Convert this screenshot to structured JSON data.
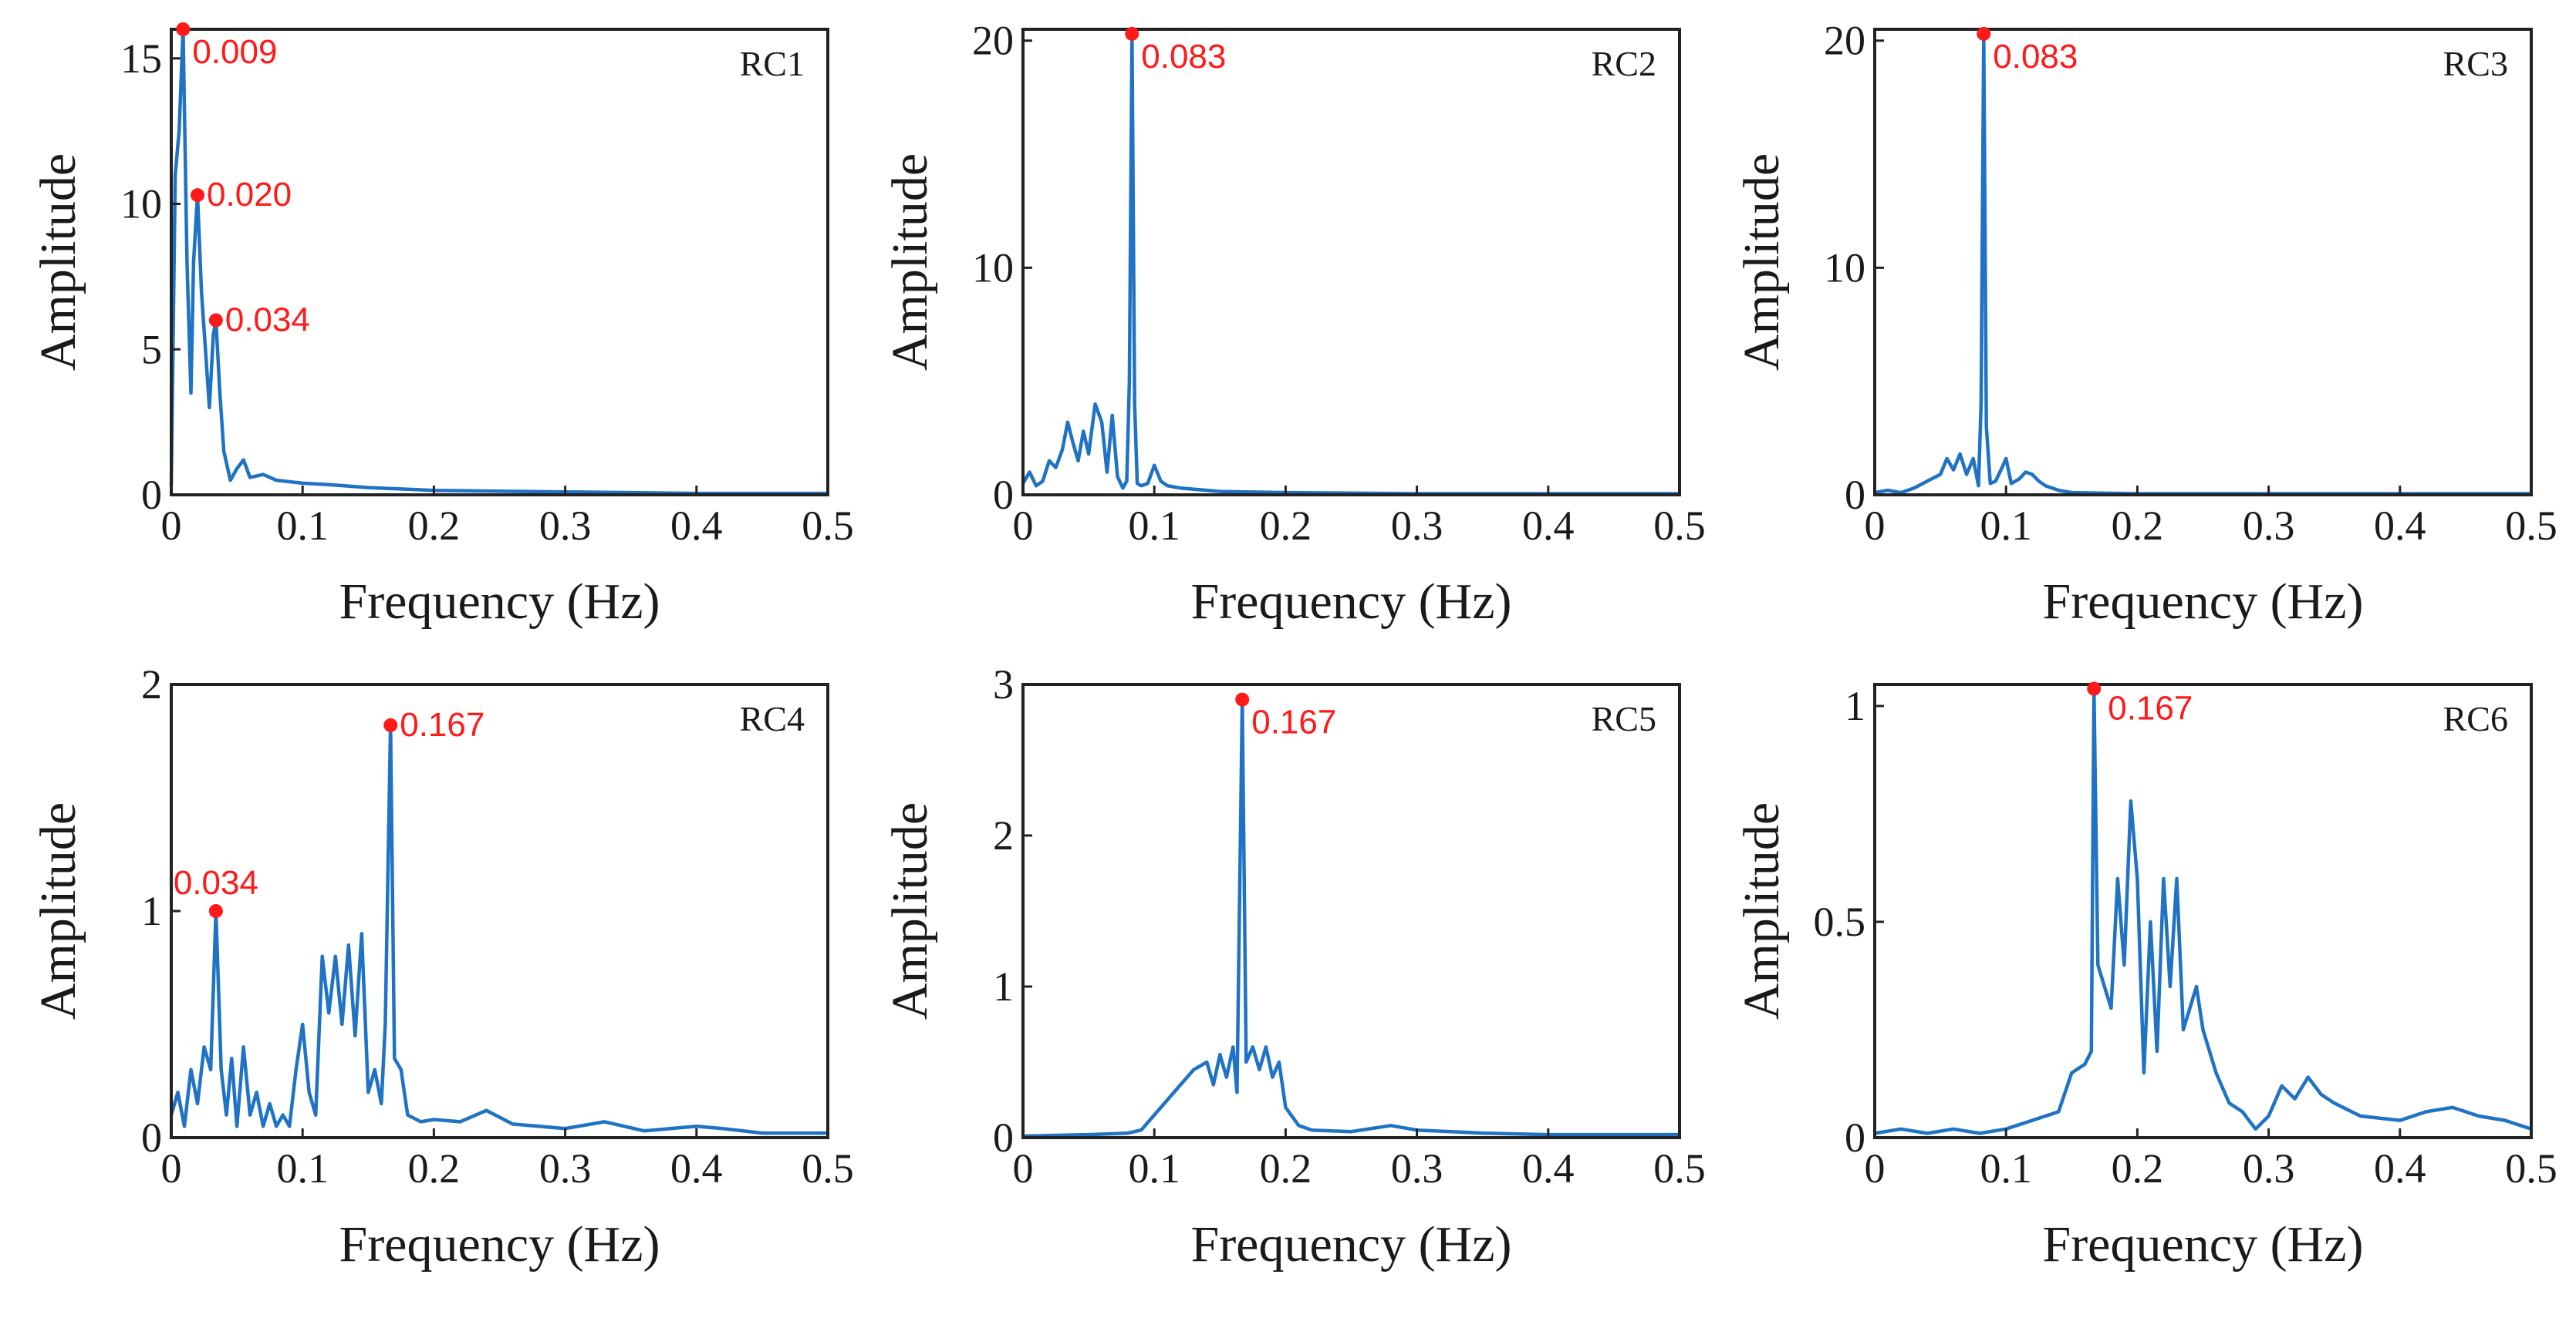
{
  "chart_data": [
    {
      "type": "line",
      "panel_label": "RC1",
      "xlabel": "Frequency (Hz)",
      "ylabel": "Amplitude",
      "xlim": [
        0,
        0.5
      ],
      "ylim": [
        0,
        16
      ],
      "xticks": [
        0,
        0.1,
        0.2,
        0.3,
        0.4,
        0.5
      ],
      "xtick_labels": [
        "0",
        "0.1",
        "0.2",
        "0.3",
        "0.4",
        "0.5"
      ],
      "yticks": [
        0,
        5,
        10,
        15
      ],
      "ytick_labels": [
        "0",
        "5",
        "10",
        "15"
      ],
      "series": [
        {
          "name": "RC1",
          "color": "#1f72c4",
          "x": [
            0,
            0.003,
            0.006,
            0.009,
            0.012,
            0.015,
            0.017,
            0.02,
            0.023,
            0.026,
            0.029,
            0.032,
            0.034,
            0.037,
            0.04,
            0.045,
            0.05,
            0.055,
            0.06,
            0.07,
            0.08,
            0.1,
            0.12,
            0.15,
            0.2,
            0.3,
            0.4,
            0.5
          ],
          "y": [
            0.3,
            11,
            12.5,
            16,
            8,
            3.5,
            8,
            10.3,
            7,
            5,
            3,
            5.5,
            6,
            3.5,
            1.5,
            0.5,
            0.9,
            1.2,
            0.6,
            0.7,
            0.5,
            0.4,
            0.35,
            0.25,
            0.15,
            0.1,
            0.05,
            0.05
          ]
        }
      ],
      "annotations": [
        {
          "x": 0.009,
          "y": 16,
          "label": "0.009"
        },
        {
          "x": 0.02,
          "y": 10.3,
          "label": "0.020"
        },
        {
          "x": 0.034,
          "y": 6,
          "label": "0.034"
        }
      ]
    },
    {
      "type": "line",
      "panel_label": "RC2",
      "xlabel": "Frequency (Hz)",
      "ylabel": "Amplitude",
      "xlim": [
        0,
        0.5
      ],
      "ylim": [
        0,
        20.5
      ],
      "xticks": [
        0,
        0.1,
        0.2,
        0.3,
        0.4,
        0.5
      ],
      "xtick_labels": [
        "0",
        "0.1",
        "0.2",
        "0.3",
        "0.4",
        "0.5"
      ],
      "yticks": [
        0,
        10,
        20
      ],
      "ytick_labels": [
        "0",
        "10",
        "20"
      ],
      "series": [
        {
          "name": "RC2",
          "color": "#1f72c4",
          "x": [
            0,
            0.005,
            0.01,
            0.015,
            0.02,
            0.025,
            0.03,
            0.034,
            0.038,
            0.042,
            0.046,
            0.05,
            0.055,
            0.06,
            0.064,
            0.068,
            0.072,
            0.076,
            0.079,
            0.081,
            0.083,
            0.085,
            0.087,
            0.09,
            0.095,
            0.1,
            0.105,
            0.11,
            0.12,
            0.15,
            0.2,
            0.3,
            0.4,
            0.5
          ],
          "y": [
            0.5,
            1,
            0.4,
            0.6,
            1.5,
            1.2,
            2,
            3.2,
            2.3,
            1.5,
            2.8,
            1.8,
            4,
            3.2,
            1,
            3.5,
            0.8,
            0.3,
            0.6,
            5,
            20.3,
            4,
            0.5,
            0.4,
            0.5,
            1.3,
            0.6,
            0.4,
            0.3,
            0.15,
            0.1,
            0.05,
            0.05,
            0.05
          ]
        }
      ],
      "annotations": [
        {
          "x": 0.083,
          "y": 20.3,
          "label": "0.083"
        }
      ]
    },
    {
      "type": "line",
      "panel_label": "RC3",
      "xlabel": "Frequency (Hz)",
      "ylabel": "Amplitude",
      "xlim": [
        0,
        0.5
      ],
      "ylim": [
        0,
        20.5
      ],
      "xticks": [
        0,
        0.1,
        0.2,
        0.3,
        0.4,
        0.5
      ],
      "xtick_labels": [
        "0",
        "0.1",
        "0.2",
        "0.3",
        "0.4",
        "0.5"
      ],
      "yticks": [
        0,
        10,
        20
      ],
      "ytick_labels": [
        "0",
        "10",
        "20"
      ],
      "series": [
        {
          "name": "RC3",
          "color": "#1f72c4",
          "x": [
            0,
            0.01,
            0.02,
            0.03,
            0.04,
            0.05,
            0.055,
            0.06,
            0.065,
            0.07,
            0.075,
            0.079,
            0.081,
            0.083,
            0.085,
            0.088,
            0.092,
            0.097,
            0.1,
            0.104,
            0.11,
            0.115,
            0.12,
            0.125,
            0.13,
            0.14,
            0.15,
            0.2,
            0.3,
            0.4,
            0.5
          ],
          "y": [
            0.1,
            0.2,
            0.1,
            0.3,
            0.6,
            0.9,
            1.6,
            1.1,
            1.8,
            0.9,
            1.6,
            0.4,
            4,
            20.3,
            3,
            0.5,
            0.6,
            1.2,
            1.6,
            0.5,
            0.7,
            1,
            0.9,
            0.6,
            0.4,
            0.2,
            0.1,
            0.05,
            0.05,
            0.05,
            0.05
          ]
        }
      ],
      "annotations": [
        {
          "x": 0.083,
          "y": 20.3,
          "label": "0.083"
        }
      ]
    },
    {
      "type": "line",
      "panel_label": "RC4",
      "xlabel": "Frequency (Hz)",
      "ylabel": "Amplitude",
      "xlim": [
        0,
        0.5
      ],
      "ylim": [
        0,
        2
      ],
      "xticks": [
        0,
        0.1,
        0.2,
        0.3,
        0.4,
        0.5
      ],
      "xtick_labels": [
        "0",
        "0.1",
        "0.2",
        "0.3",
        "0.4",
        "0.5"
      ],
      "yticks": [
        0,
        1,
        2
      ],
      "ytick_labels": [
        "0",
        "1",
        "2"
      ],
      "series": [
        {
          "name": "RC4",
          "color": "#1f72c4",
          "x": [
            0,
            0.005,
            0.01,
            0.015,
            0.02,
            0.025,
            0.03,
            0.034,
            0.038,
            0.042,
            0.046,
            0.05,
            0.055,
            0.06,
            0.065,
            0.07,
            0.075,
            0.08,
            0.085,
            0.09,
            0.095,
            0.1,
            0.105,
            0.11,
            0.115,
            0.12,
            0.125,
            0.13,
            0.135,
            0.14,
            0.145,
            0.15,
            0.155,
            0.16,
            0.163,
            0.167,
            0.17,
            0.175,
            0.18,
            0.19,
            0.2,
            0.22,
            0.24,
            0.26,
            0.28,
            0.3,
            0.33,
            0.36,
            0.4,
            0.42,
            0.45,
            0.5
          ],
          "y": [
            0.1,
            0.2,
            0.05,
            0.3,
            0.15,
            0.4,
            0.3,
            1,
            0.3,
            0.1,
            0.35,
            0.05,
            0.4,
            0.1,
            0.2,
            0.05,
            0.15,
            0.05,
            0.1,
            0.05,
            0.3,
            0.5,
            0.2,
            0.1,
            0.8,
            0.55,
            0.8,
            0.5,
            0.85,
            0.45,
            0.9,
            0.2,
            0.3,
            0.15,
            0.5,
            1.82,
            0.35,
            0.3,
            0.1,
            0.07,
            0.08,
            0.07,
            0.12,
            0.06,
            0.05,
            0.04,
            0.07,
            0.03,
            0.05,
            0.04,
            0.02,
            0.02
          ]
        }
      ],
      "annotations": [
        {
          "x": 0.034,
          "y": 1,
          "label": "0.034"
        },
        {
          "x": 0.167,
          "y": 1.82,
          "label": "0.167"
        }
      ]
    },
    {
      "type": "line",
      "panel_label": "RC5",
      "xlabel": "Frequency (Hz)",
      "ylabel": "Amplitude",
      "xlim": [
        0,
        0.5
      ],
      "ylim": [
        0,
        3
      ],
      "xticks": [
        0,
        0.1,
        0.2,
        0.3,
        0.4,
        0.5
      ],
      "xtick_labels": [
        "0",
        "0.1",
        "0.2",
        "0.3",
        "0.4",
        "0.5"
      ],
      "yticks": [
        0,
        1,
        2,
        3
      ],
      "ytick_labels": [
        "0",
        "1",
        "2",
        "3"
      ],
      "series": [
        {
          "name": "RC5",
          "color": "#1f72c4",
          "x": [
            0,
            0.05,
            0.08,
            0.09,
            0.1,
            0.11,
            0.12,
            0.13,
            0.14,
            0.145,
            0.15,
            0.155,
            0.16,
            0.163,
            0.167,
            0.17,
            0.175,
            0.18,
            0.185,
            0.19,
            0.195,
            0.2,
            0.21,
            0.22,
            0.25,
            0.28,
            0.3,
            0.35,
            0.4,
            0.45,
            0.5
          ],
          "y": [
            0.01,
            0.02,
            0.03,
            0.05,
            0.15,
            0.25,
            0.35,
            0.45,
            0.5,
            0.35,
            0.55,
            0.4,
            0.6,
            0.3,
            2.9,
            0.5,
            0.6,
            0.45,
            0.6,
            0.4,
            0.5,
            0.2,
            0.08,
            0.05,
            0.04,
            0.08,
            0.05,
            0.03,
            0.02,
            0.02,
            0.02
          ]
        }
      ],
      "annotations": [
        {
          "x": 0.167,
          "y": 2.9,
          "label": "0.167"
        }
      ]
    },
    {
      "type": "line",
      "panel_label": "RC6",
      "xlabel": "Frequency (Hz)",
      "ylabel": "Amplitude",
      "xlim": [
        0,
        0.5
      ],
      "ylim": [
        0,
        1.05
      ],
      "xticks": [
        0,
        0.1,
        0.2,
        0.3,
        0.4,
        0.5
      ],
      "xtick_labels": [
        "0",
        "0.1",
        "0.2",
        "0.3",
        "0.4",
        "0.5"
      ],
      "yticks": [
        0,
        0.5,
        1
      ],
      "ytick_labels": [
        "0",
        "0.5",
        "1"
      ],
      "series": [
        {
          "name": "RC6",
          "color": "#1f72c4",
          "x": [
            0,
            0.02,
            0.04,
            0.06,
            0.08,
            0.1,
            0.12,
            0.14,
            0.15,
            0.16,
            0.165,
            0.167,
            0.17,
            0.175,
            0.18,
            0.185,
            0.19,
            0.195,
            0.2,
            0.205,
            0.21,
            0.215,
            0.22,
            0.225,
            0.23,
            0.235,
            0.24,
            0.245,
            0.25,
            0.26,
            0.27,
            0.28,
            0.29,
            0.3,
            0.31,
            0.32,
            0.33,
            0.34,
            0.35,
            0.37,
            0.4,
            0.42,
            0.44,
            0.46,
            0.48,
            0.5
          ],
          "y": [
            0.01,
            0.02,
            0.01,
            0.02,
            0.01,
            0.02,
            0.04,
            0.06,
            0.15,
            0.17,
            0.2,
            1.04,
            0.4,
            0.35,
            0.3,
            0.6,
            0.4,
            0.78,
            0.6,
            0.15,
            0.5,
            0.2,
            0.6,
            0.35,
            0.6,
            0.25,
            0.3,
            0.35,
            0.25,
            0.15,
            0.08,
            0.06,
            0.02,
            0.05,
            0.12,
            0.09,
            0.14,
            0.1,
            0.08,
            0.05,
            0.04,
            0.06,
            0.07,
            0.05,
            0.04,
            0.02
          ]
        }
      ],
      "annotations": [
        {
          "x": 0.167,
          "y": 1.04,
          "label": "0.167"
        }
      ]
    }
  ]
}
